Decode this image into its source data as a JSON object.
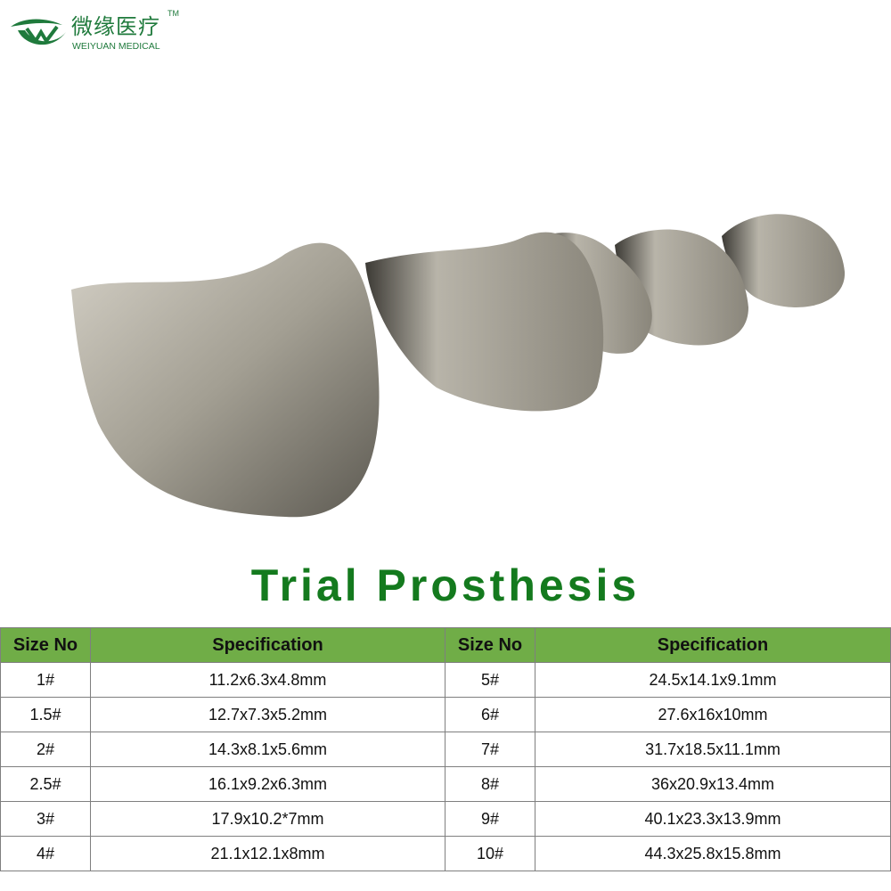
{
  "logo": {
    "chinese_name": "微缘医疗",
    "trademark": "TM",
    "english_name": "WEIYUAN MEDICAL",
    "color": "#1f7a3c"
  },
  "title": "Trial Prosthesis",
  "title_color": "#147a1e",
  "table": {
    "header_color": "#70ad47",
    "headers": [
      "Size No",
      "Specification",
      "Size No",
      "Specification"
    ],
    "rows": [
      [
        "1#",
        "11.2x6.3x4.8mm",
        "5#",
        "24.5x14.1x9.1mm"
      ],
      [
        "1.5#",
        "12.7x7.3x5.2mm",
        "6#",
        "27.6x16x10mm"
      ],
      [
        "2#",
        "14.3x8.1x5.6mm",
        "7#",
        "31.7x18.5x11.1mm"
      ],
      [
        "2.5#",
        "16.1x9.2x6.3mm",
        "8#",
        "36x20.9x13.4mm"
      ],
      [
        "3#",
        "17.9x10.2*7mm",
        "9#",
        "40.1x23.3x13.9mm"
      ],
      [
        "4#",
        "21.1x12.1x8mm",
        "10#",
        "44.3x25.8x15.8mm"
      ]
    ]
  }
}
